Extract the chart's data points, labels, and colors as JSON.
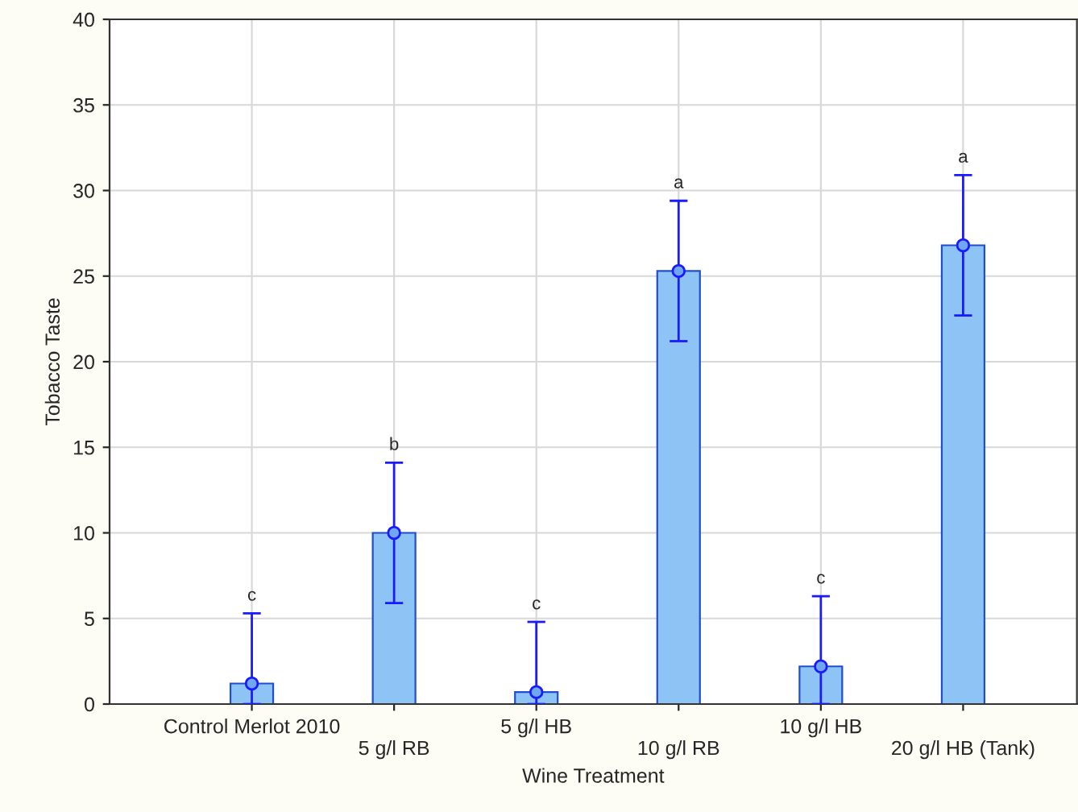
{
  "chart_data": {
    "type": "bar",
    "xlabel": "Wine Treatment",
    "ylabel": "Tobacco Taste",
    "categories": [
      "Control Merlot 2010",
      "5 g/l RB",
      "5 g/l HB",
      "10 g/l RB",
      "10 g/l HB",
      "20 g/l HB (Tank)"
    ],
    "series": [
      {
        "color": "#8ec4f5",
        "values": [
          1.2,
          10.0,
          0.7,
          25.3,
          2.2,
          26.8
        ],
        "errors": [
          [
            0,
            5.3
          ],
          4.1,
          [
            0,
            4.8
          ],
          4.1,
          [
            0,
            6.3
          ],
          4.1
        ]
      },
      {
        "type": "scatter",
        "color": "#6fa8f0",
        "marker": "circle",
        "x": [
          "Control Merlot 2010",
          "5 g/l RB",
          "5 g/l HB",
          "10 g/l RB",
          "10 g/l HB",
          "20 g/l HB (Tank)"
        ],
        "values": [
          1.2,
          10.0,
          0.7,
          25.3,
          2.2,
          26.8
        ]
      }
    ],
    "ylim": [
      0,
      40
    ],
    "yticks": [
      0,
      5,
      10,
      15,
      20,
      25,
      30,
      35,
      40
    ],
    "grid": true,
    "annotations": [
      {
        "text": "c",
        "x": "Control Merlot 2010",
        "y": 5.3
      },
      {
        "text": "b",
        "x": "5 g/l RB",
        "y": 14.1
      },
      {
        "text": "c",
        "x": "5 g/l HB",
        "y": 4.8
      },
      {
        "text": "a",
        "x": "10 g/l RB",
        "y": 29.4
      },
      {
        "text": "c",
        "x": "10 g/l HB",
        "y": 6.3
      },
      {
        "text": "a",
        "x": "20 g/l HB (Tank)",
        "y": 30.9
      }
    ]
  }
}
